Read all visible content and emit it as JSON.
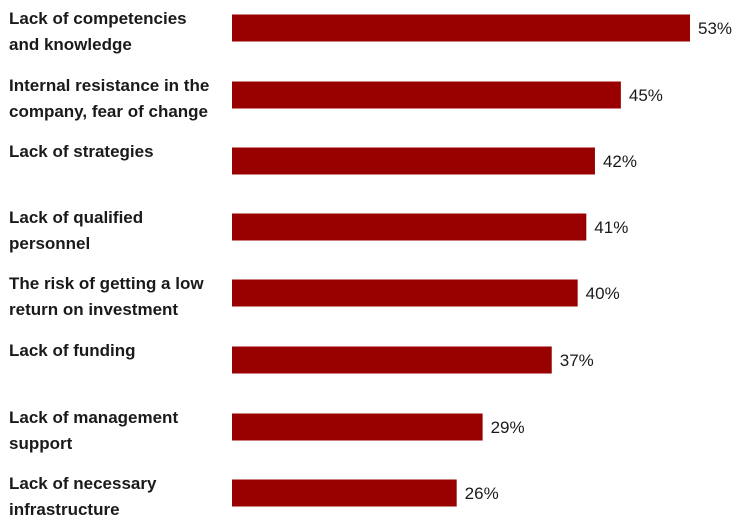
{
  "chart_data": {
    "type": "bar",
    "orientation": "horizontal",
    "categories": [
      [
        "Lack of competencies",
        "and knowledge"
      ],
      [
        "Internal resistance in the",
        "company, fear of change"
      ],
      [
        "Lack of strategies"
      ],
      [
        "Lack of qualified",
        "personnel"
      ],
      [
        "The risk of getting a low",
        "return on investment"
      ],
      [
        "Lack of funding"
      ],
      [
        "Lack of management",
        "support"
      ],
      [
        "Lack of necessary",
        "infrastructure"
      ]
    ],
    "values": [
      53,
      45,
      42,
      41,
      40,
      37,
      29,
      26
    ],
    "value_labels": [
      "53%",
      "45%",
      "42%",
      "41%",
      "40%",
      "37%",
      "29%",
      "26%"
    ],
    "bar_color": "#990000",
    "xlim": [
      0,
      60
    ],
    "title": "",
    "xlabel": "",
    "ylabel": "",
    "grid": false,
    "legend": "none"
  }
}
